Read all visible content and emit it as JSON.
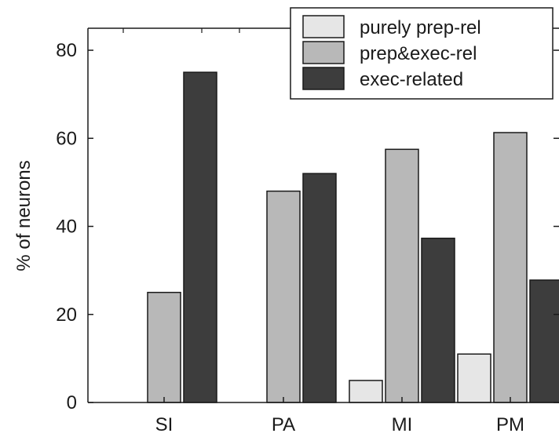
{
  "chart_data": {
    "type": "bar",
    "title": "",
    "xlabel": "",
    "ylabel": "% of neurons",
    "categories": [
      "SI",
      "PA",
      "MI",
      "PM"
    ],
    "series": [
      {
        "name": "purely prep-rel",
        "color": "#e6e6e6",
        "values": [
          0,
          0,
          5,
          11
        ]
      },
      {
        "name": "prep&exec-rel",
        "color": "#b8b8b8",
        "values": [
          25,
          48,
          57.5,
          61.3
        ]
      },
      {
        "name": "exec-related",
        "color": "#3d3d3d",
        "values": [
          75,
          52,
          37.3,
          27.8
        ]
      }
    ],
    "ylim": [
      0,
      85
    ],
    "yticks": [
      0,
      20,
      40,
      60,
      80
    ],
    "grid": false,
    "legend_position": "top-right"
  }
}
